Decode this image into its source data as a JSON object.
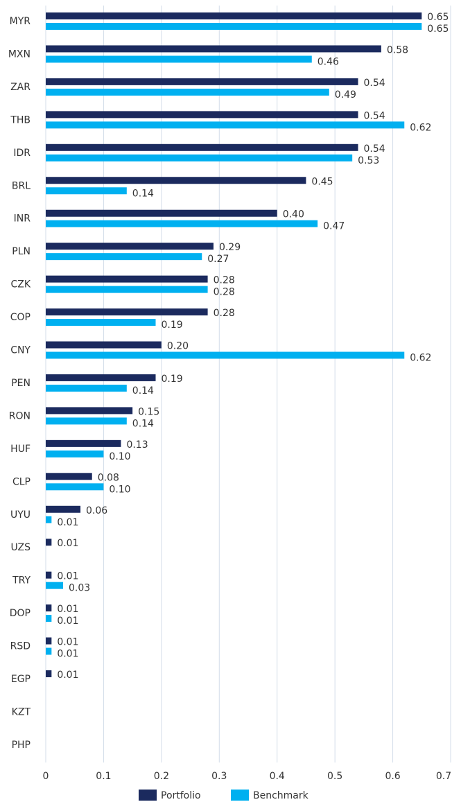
{
  "chart_data": {
    "type": "hbar",
    "categories": [
      "MYR",
      "MXN",
      "ZAR",
      "THB",
      "IDR",
      "BRL",
      "INR",
      "PLN",
      "CZK",
      "COP",
      "CNY",
      "PEN",
      "RON",
      "HUF",
      "CLP",
      "UYU",
      "UZS",
      "TRY",
      "DOP",
      "RSD",
      "EGP",
      "KZT",
      "PHP"
    ],
    "series": [
      {
        "name": "Portfolio",
        "color": "#1b2a5e",
        "values": [
          0.65,
          0.58,
          0.54,
          0.54,
          0.54,
          0.45,
          0.4,
          0.29,
          0.28,
          0.28,
          0.2,
          0.19,
          0.15,
          0.13,
          0.08,
          0.06,
          0.01,
          0.01,
          0.01,
          0.01,
          0.01,
          null,
          null
        ],
        "value_labels": [
          "0.65",
          "0.58",
          "0.54",
          "0.54",
          "0.54",
          "0.45",
          "0.40",
          "0.29",
          "0.28",
          "0.28",
          "0.20",
          "0.19",
          "0.15",
          "0.13",
          "0.08",
          "0.06",
          "0.01",
          "0.01",
          "0.01",
          "0.01",
          "0.01",
          null,
          null
        ]
      },
      {
        "name": "Benchmark",
        "color": "#00b0f0",
        "values": [
          0.65,
          0.46,
          0.49,
          0.62,
          0.53,
          0.14,
          0.47,
          0.27,
          0.28,
          0.19,
          0.62,
          0.14,
          0.14,
          0.1,
          0.1,
          0.01,
          null,
          0.03,
          0.01,
          0.01,
          null,
          null,
          null
        ],
        "value_labels": [
          "0.65",
          "0.46",
          "0.49",
          "0.62",
          "0.53",
          "0.14",
          "0.47",
          "0.27",
          "0.28",
          "0.19",
          "0.62",
          "0.14",
          "0.14",
          "0.10",
          "0.10",
          "0.01",
          null,
          "0.03",
          "0.01",
          "0.01",
          null,
          null,
          null
        ]
      }
    ],
    "xlim": [
      0,
      0.7
    ],
    "xticks": [
      0,
      0.1,
      0.2,
      0.3,
      0.4,
      0.5,
      0.6,
      0.7
    ],
    "grid": true,
    "legend": "bottom"
  }
}
